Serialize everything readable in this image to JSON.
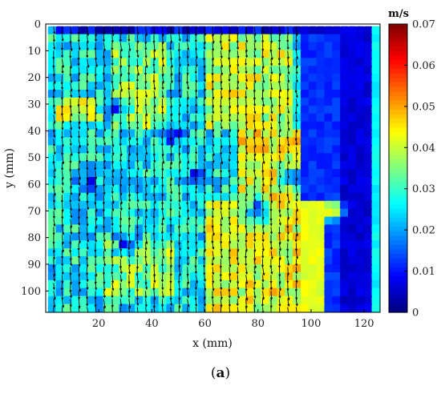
{
  "chart_data": {
    "type": "heatmap",
    "title": "",
    "xlabel": "x (mm)",
    "ylabel": "y (mm)",
    "xlim": [
      0,
      126
    ],
    "ylim": [
      0,
      108
    ],
    "y_direction": "down",
    "xticks": [
      20,
      40,
      60,
      80,
      100,
      120
    ],
    "yticks": [
      0,
      10,
      20,
      30,
      40,
      50,
      60,
      70,
      80,
      90,
      100
    ],
    "grid": false,
    "colorbar": {
      "unit": "m/s",
      "range": [
        0,
        0.07
      ],
      "ticks": [
        "0",
        "0.01",
        "0.02",
        "0.03",
        "0.04",
        "0.05",
        "0.06",
        "0.07"
      ],
      "colormap": "jet"
    },
    "field": {
      "quantity": "velocity magnitude",
      "grid_cols": 42,
      "grid_rows": 36,
      "x_range": [
        1,
        126
      ],
      "y_range": [
        1,
        108
      ],
      "regions": [
        {
          "x": [
            95,
            124
          ],
          "y": [
            0,
            108
          ],
          "value": 0.012
        },
        {
          "x": [
            112,
            124
          ],
          "y": [
            0,
            108
          ],
          "value": 0.006
        },
        {
          "x": [
            3,
            110
          ],
          "y": [
            0,
            3
          ],
          "value": 0.005
        },
        {
          "x": [
            24,
            45
          ],
          "y": [
            8,
            40
          ],
          "value": 0.036
        },
        {
          "x": [
            60,
            93
          ],
          "y": [
            5,
            40
          ],
          "value": 0.04
        },
        {
          "x": [
            72,
            95
          ],
          "y": [
            40,
            66
          ],
          "value": 0.043
        },
        {
          "x": [
            62,
            105
          ],
          "y": [
            66,
            108
          ],
          "value": 0.042
        },
        {
          "x": [
            22,
            50
          ],
          "y": [
            80,
            102
          ],
          "value": 0.036
        },
        {
          "x": [
            3,
            22
          ],
          "y": [
            28,
            36
          ],
          "value": 0.04
        }
      ],
      "hotspots": [
        {
          "x": 83,
          "y": 47,
          "value": 0.055
        },
        {
          "x": 75,
          "y": 93,
          "value": 0.058
        },
        {
          "x": 85,
          "y": 99,
          "value": 0.054
        },
        {
          "x": 71,
          "y": 99,
          "value": 0.052
        },
        {
          "x": 108,
          "y": 70,
          "value": 0.05
        }
      ],
      "low_spots": [
        {
          "x": 25,
          "y": 32,
          "value": 0.01
        },
        {
          "x": 48,
          "y": 42,
          "value": 0.012
        },
        {
          "x": 16,
          "y": 60,
          "value": 0.012
        },
        {
          "x": 58,
          "y": 57,
          "value": 0.012
        },
        {
          "x": 80,
          "y": 70,
          "value": 0.008
        },
        {
          "x": 30,
          "y": 83,
          "value": 0.014
        },
        {
          "x": 93,
          "y": 57,
          "value": 0.012
        }
      ]
    },
    "vectors": {
      "present": true,
      "mean_direction_deg": 80,
      "color": "#000000"
    }
  },
  "caption": {
    "label": "a"
  }
}
